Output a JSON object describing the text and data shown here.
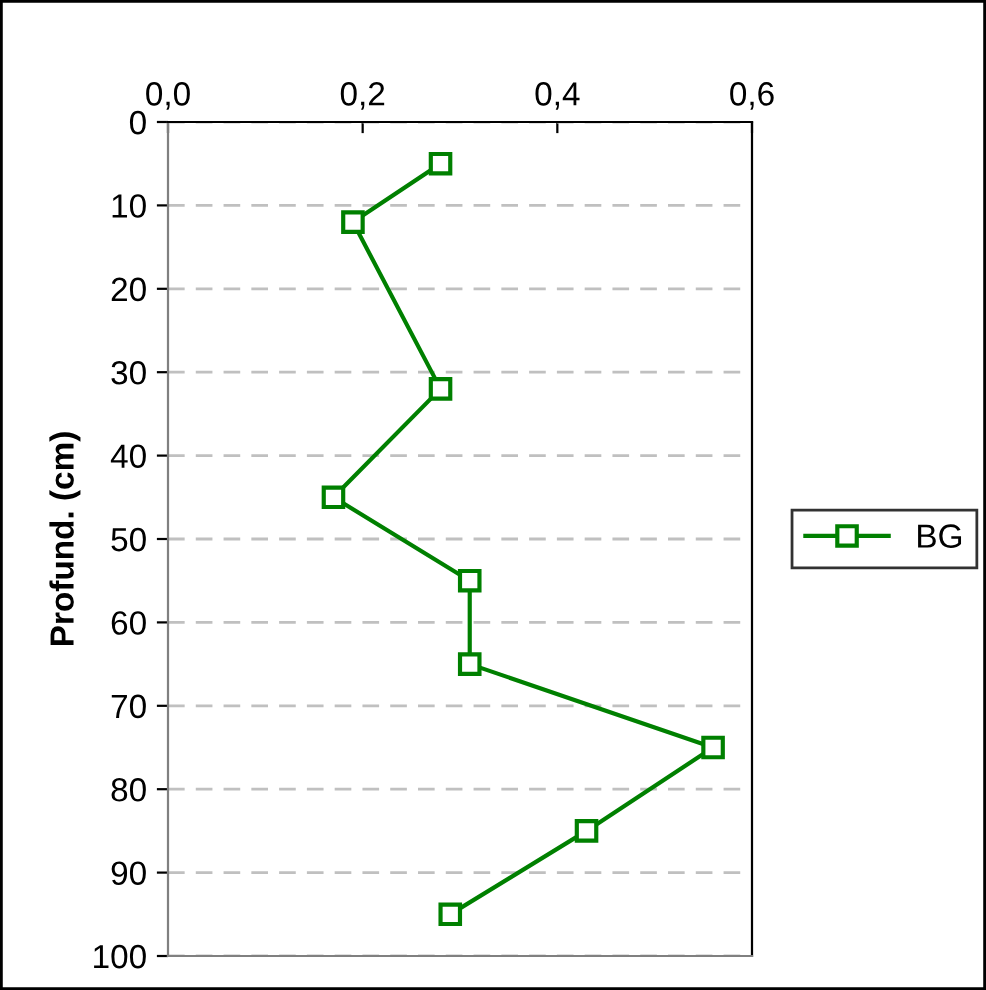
{
  "chart_data": {
    "type": "line",
    "orientation": "horizontal",
    "ylabel": "Profund. (cm)",
    "series": [
      {
        "name": "BG",
        "color": "#008000",
        "x": [
          5,
          12,
          32,
          45,
          55,
          65,
          75,
          85,
          95
        ],
        "values": [
          0.28,
          0.19,
          0.28,
          0.17,
          0.31,
          0.31,
          0.56,
          0.43,
          0.29
        ]
      }
    ],
    "xlim": [
      0,
      0.6
    ],
    "xticks": [
      {
        "value": 0,
        "label": "0,0"
      },
      {
        "value": 0.2,
        "label": "0,2"
      },
      {
        "value": 0.4,
        "label": "0,4"
      },
      {
        "value": 0.6,
        "label": "0,6"
      }
    ],
    "ylim": [
      100,
      0
    ],
    "yticks": [
      0,
      10,
      20,
      30,
      40,
      50,
      60,
      70,
      80,
      90,
      100
    ],
    "grid": "y",
    "legend": "right",
    "marker": "square",
    "line_style": "solid"
  }
}
